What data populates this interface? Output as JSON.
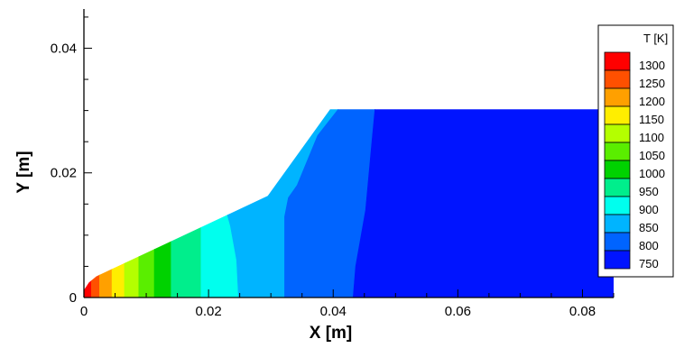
{
  "chart_data": {
    "type": "heatmap",
    "title": "",
    "xlabel": "X [m]",
    "ylabel": "Y [m]",
    "xlim": [
      0,
      0.085
    ],
    "ylim": [
      0,
      0.046
    ],
    "x_ticks": [
      {
        "value": 0,
        "label": "0"
      },
      {
        "value": 0.02,
        "label": "0.02"
      },
      {
        "value": 0.04,
        "label": "0.04"
      },
      {
        "value": 0.06,
        "label": "0.06"
      },
      {
        "value": 0.08,
        "label": "0.08"
      }
    ],
    "y_ticks": [
      {
        "value": 0,
        "label": "0"
      },
      {
        "value": 0.02,
        "label": "0.02"
      },
      {
        "value": 0.04,
        "label": "0.04"
      }
    ],
    "x_minor_step": 0.005,
    "y_minor_step": 0.005,
    "legend": {
      "title": "T [K]",
      "placement": "right",
      "levels": [
        {
          "label": "1300",
          "value": 1300,
          "color": "#ff0000"
        },
        {
          "label": "1250",
          "value": 1250,
          "color": "#ff5000"
        },
        {
          "label": "1200",
          "value": 1200,
          "color": "#ffa000"
        },
        {
          "label": "1150",
          "value": 1150,
          "color": "#ffee00"
        },
        {
          "label": "1100",
          "value": 1100,
          "color": "#b4ff00"
        },
        {
          "label": "1050",
          "value": 1050,
          "color": "#5aee00"
        },
        {
          "label": "1000",
          "value": 1000,
          "color": "#00d200"
        },
        {
          "label": "950",
          "value": 950,
          "color": "#00ee8c"
        },
        {
          "label": "900",
          "value": 900,
          "color": "#00ffee"
        },
        {
          "label": "850",
          "value": 850,
          "color": "#00b4ff"
        },
        {
          "label": "800",
          "value": 800,
          "color": "#0064ff"
        },
        {
          "label": "750",
          "value": 750,
          "color": "#0014ff"
        }
      ]
    },
    "domain_boundary": [
      [
        0,
        0
      ],
      [
        0,
        0.0012
      ],
      [
        0.0008,
        0.0024
      ],
      [
        0.002,
        0.0034
      ],
      [
        0.0295,
        0.0163
      ],
      [
        0.0395,
        0.0302
      ],
      [
        0.085,
        0.0302
      ],
      [
        0.085,
        0
      ]
    ],
    "contour_bands": [
      {
        "x_left": 0,
        "x_right": 0.0012,
        "value": 1300
      },
      {
        "x_left": 0.0012,
        "x_right": 0.0025,
        "value": 1250
      },
      {
        "x_left": 0.0025,
        "x_right": 0.0045,
        "value": 1200
      },
      {
        "x_left": 0.0045,
        "x_right": 0.0065,
        "value": 1150
      },
      {
        "x_left": 0.0065,
        "x_right": 0.0088,
        "value": 1100
      },
      {
        "x_left": 0.0088,
        "x_right": 0.0113,
        "value": 1050
      },
      {
        "x_left": 0.0113,
        "x_right": 0.014,
        "value": 1000
      },
      {
        "x_left": 0.014,
        "x_right": 0.0188,
        "value": 950
      },
      {
        "x_left": 0.0188,
        "x_right": "b850",
        "value": 900
      },
      {
        "x_left": "b850",
        "x_right": "b800",
        "value": 850
      },
      {
        "x_left": "b800",
        "x_right": "b750",
        "value": 800
      },
      {
        "x_left": "b750",
        "x_right": 0.085,
        "value": 750
      }
    ],
    "contour_lines": {
      "b850": [
        [
          0.0248,
          0
        ],
        [
          0.0245,
          0.006
        ],
        [
          0.0235,
          0.0115
        ],
        [
          0.0228,
          0.014
        ]
      ],
      "b800": [
        [
          0.0322,
          0
        ],
        [
          0.0322,
          0.013
        ],
        [
          0.0328,
          0.016
        ],
        [
          0.0342,
          0.018
        ],
        [
          0.0375,
          0.026
        ],
        [
          0.0408,
          0.0302
        ]
      ],
      "b750": [
        [
          0.0432,
          0
        ],
        [
          0.0436,
          0.005
        ],
        [
          0.0452,
          0.014
        ],
        [
          0.0462,
          0.025
        ],
        [
          0.0467,
          0.0302
        ]
      ]
    }
  }
}
